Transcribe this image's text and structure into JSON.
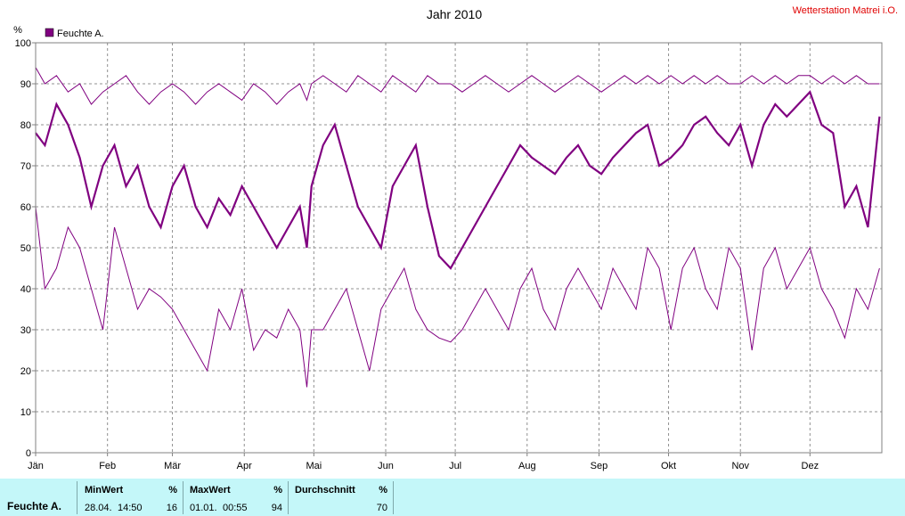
{
  "header": {
    "title": "Jahr 2010",
    "station": "Wetterstation Matrei i.O."
  },
  "chart_data": {
    "type": "line",
    "title": "Jahr 2010",
    "ylabel": "%",
    "ylim": [
      0,
      100
    ],
    "yticks": [
      "0",
      "10",
      "20",
      "30",
      "40",
      "50",
      "60",
      "70",
      "80",
      "90",
      "100"
    ],
    "xticks": [
      "Jän",
      "Feb",
      "Mär",
      "Apr",
      "Mai",
      "Jun",
      "Jul",
      "Aug",
      "Sep",
      "Okt",
      "Nov",
      "Dez"
    ],
    "x_unit": "day of year",
    "grid": true,
    "legend": "top-left",
    "series": [
      {
        "name": "Feuchte A.",
        "color": "#800080",
        "x": [
          1,
          5,
          10,
          15,
          20,
          25,
          30,
          35,
          40,
          45,
          50,
          55,
          60,
          65,
          70,
          75,
          80,
          85,
          90,
          95,
          100,
          105,
          110,
          115,
          118,
          120,
          125,
          130,
          135,
          140,
          145,
          150,
          155,
          160,
          165,
          170,
          175,
          180,
          185,
          190,
          195,
          200,
          205,
          210,
          215,
          220,
          225,
          230,
          235,
          240,
          245,
          250,
          255,
          260,
          265,
          270,
          275,
          280,
          285,
          290,
          295,
          300,
          305,
          310,
          315,
          320,
          325,
          330,
          335,
          340,
          345,
          350,
          355,
          360,
          365
        ],
        "min": [
          60,
          40,
          45,
          55,
          50,
          40,
          30,
          55,
          45,
          35,
          40,
          38,
          35,
          30,
          25,
          20,
          35,
          30,
          40,
          25,
          30,
          28,
          35,
          30,
          16,
          30,
          30,
          35,
          40,
          30,
          20,
          35,
          40,
          45,
          35,
          30,
          28,
          27,
          30,
          35,
          40,
          35,
          30,
          40,
          45,
          35,
          30,
          40,
          45,
          40,
          35,
          45,
          40,
          35,
          50,
          45,
          30,
          45,
          50,
          40,
          35,
          50,
          45,
          25,
          45,
          50,
          40,
          45,
          50,
          40,
          35,
          28,
          40,
          35,
          45
        ],
        "avg": [
          78,
          75,
          85,
          80,
          72,
          60,
          70,
          75,
          65,
          70,
          60,
          55,
          65,
          70,
          60,
          55,
          62,
          58,
          65,
          60,
          55,
          50,
          55,
          60,
          50,
          65,
          75,
          80,
          70,
          60,
          55,
          50,
          65,
          70,
          75,
          60,
          48,
          45,
          50,
          55,
          60,
          65,
          70,
          75,
          72,
          70,
          68,
          72,
          75,
          70,
          68,
          72,
          75,
          78,
          80,
          70,
          72,
          75,
          80,
          82,
          78,
          75,
          80,
          70,
          80,
          85,
          82,
          85,
          88,
          80,
          78,
          60,
          65,
          55,
          82
        ],
        "max": [
          94,
          90,
          92,
          88,
          90,
          85,
          88,
          90,
          92,
          88,
          85,
          88,
          90,
          88,
          85,
          88,
          90,
          88,
          86,
          90,
          88,
          85,
          88,
          90,
          86,
          90,
          92,
          90,
          88,
          92,
          90,
          88,
          92,
          90,
          88,
          92,
          90,
          90,
          88,
          90,
          92,
          90,
          88,
          90,
          92,
          90,
          88,
          90,
          92,
          90,
          88,
          90,
          92,
          90,
          92,
          90,
          92,
          90,
          92,
          90,
          92,
          90,
          90,
          92,
          90,
          92,
          90,
          92,
          92,
          90,
          92,
          90,
          92,
          90,
          90
        ]
      }
    ]
  },
  "stats": {
    "label": "Feuchte A.",
    "min": {
      "header": "MinWert",
      "unit": "%",
      "date": "28.04.",
      "time": "14:50",
      "value": "16"
    },
    "max": {
      "header": "MaxWert",
      "unit": "%",
      "date": "01.01.",
      "time": "00:55",
      "value": "94"
    },
    "avg": {
      "header": "Durchschnitt",
      "unit": "%",
      "value": "70"
    }
  }
}
